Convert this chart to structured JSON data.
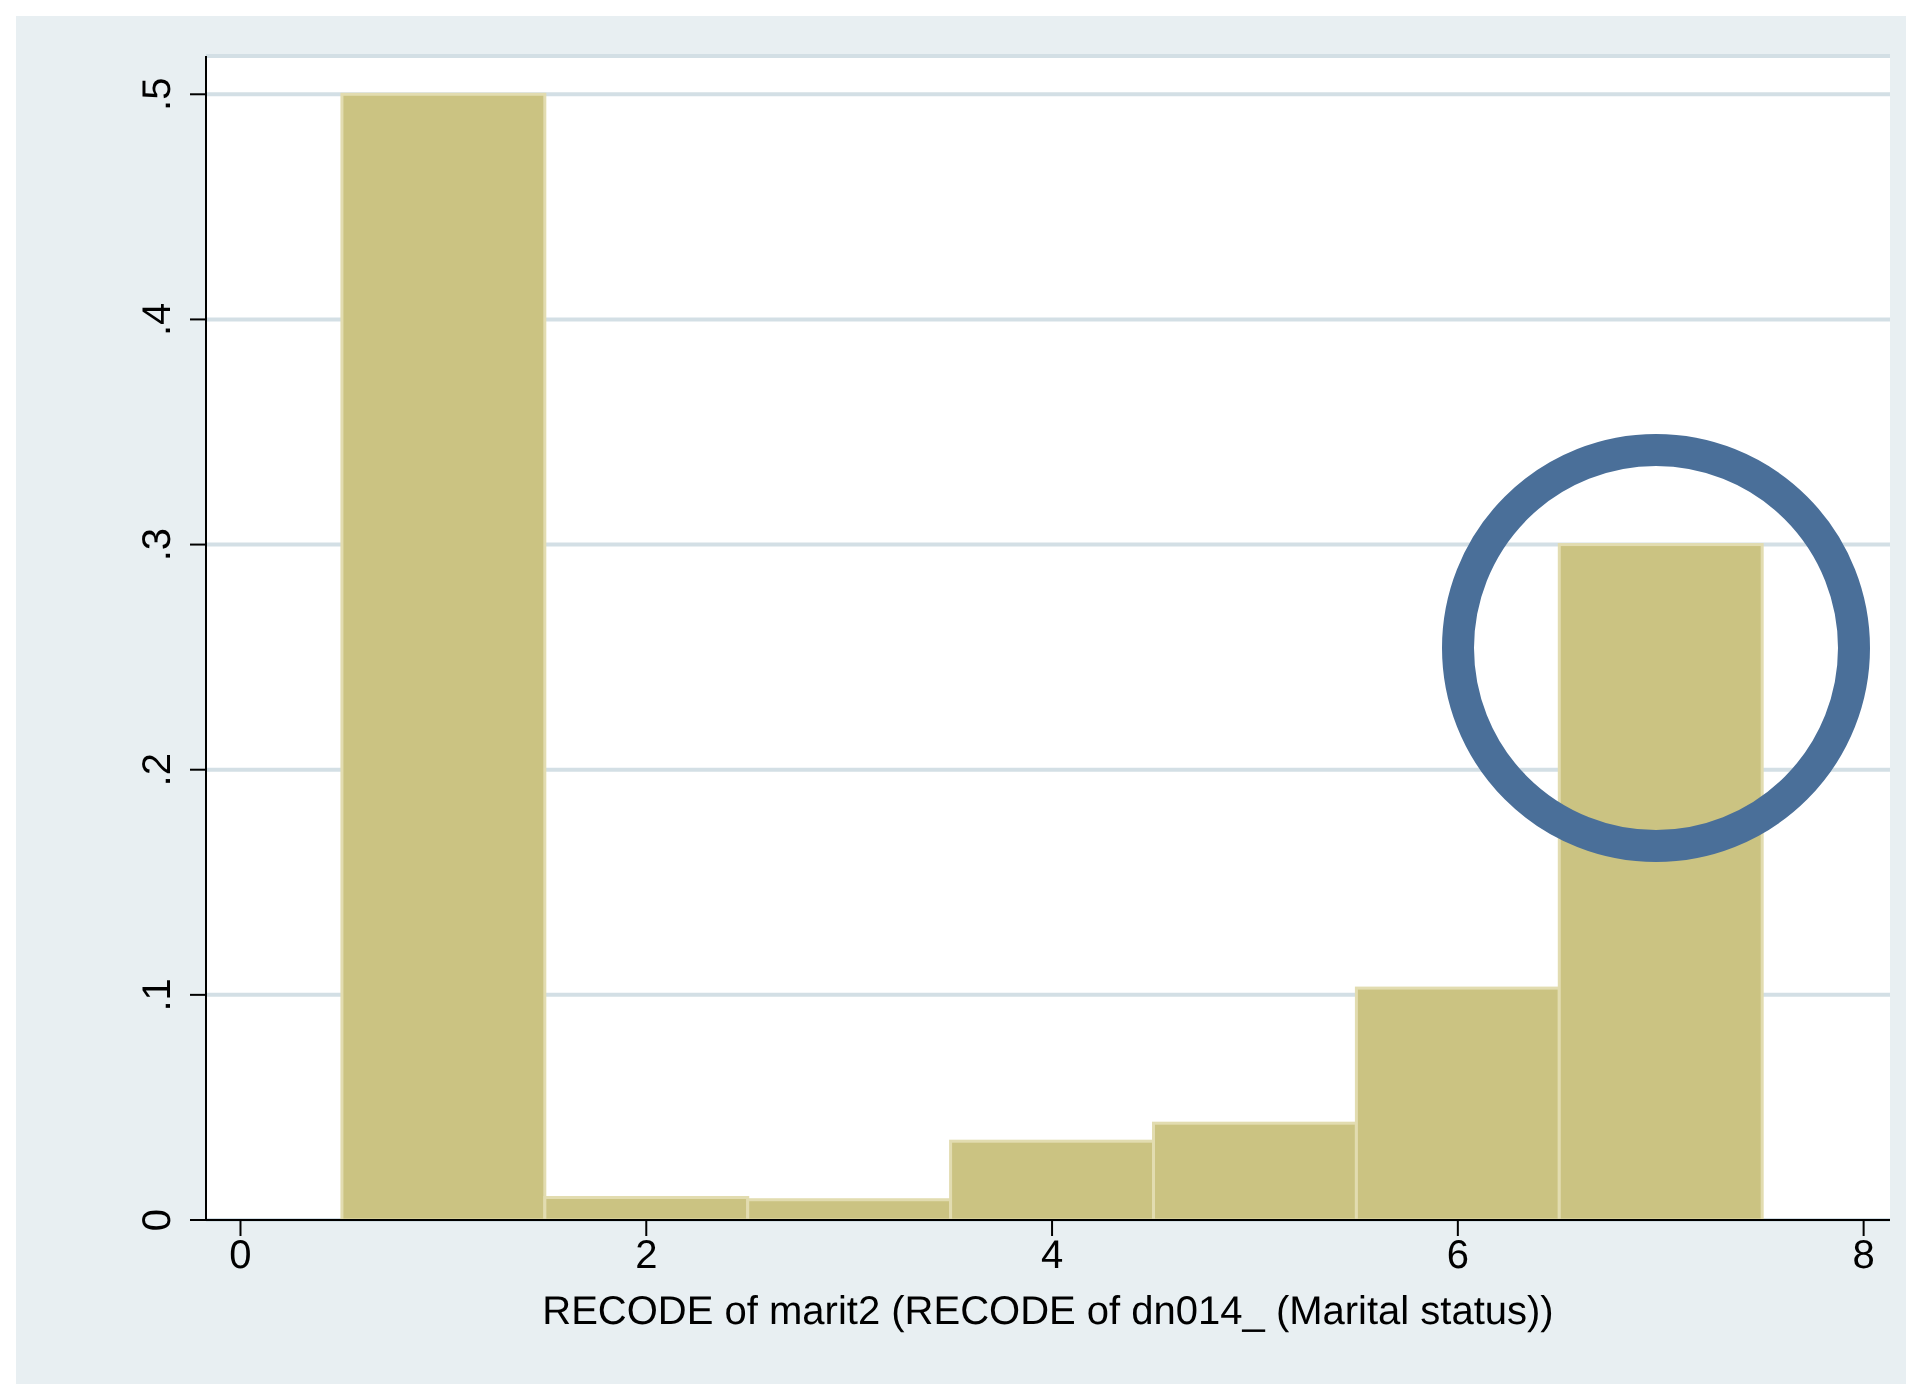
{
  "chart_data": {
    "type": "histogram",
    "xlabel": "RECODE of marit2 (RECODE of dn014_ (Marital status))",
    "bins": [
      0.5,
      1.5,
      2.5,
      3.5,
      4.5,
      5.5,
      6.5,
      7.5
    ],
    "values": [
      0.5,
      0.01,
      0.009,
      0.035,
      0.043,
      0.103,
      0.3
    ],
    "color": "#cbc382",
    "xlim": [
      -0.17,
      8.13
    ],
    "xticks": [
      0,
      2,
      4,
      6,
      8
    ],
    "ylim": [
      0,
      0.517
    ],
    "yticks": [
      {
        "value": 0,
        "label": "0"
      },
      {
        "value": 0.1,
        "label": ".1"
      },
      {
        "value": 0.2,
        "label": ".2"
      },
      {
        "value": 0.3,
        "label": ".3"
      },
      {
        "value": 0.4,
        "label": ".4"
      },
      {
        "value": 0.5,
        "label": ".5"
      }
    ],
    "grid": "y"
  }
}
